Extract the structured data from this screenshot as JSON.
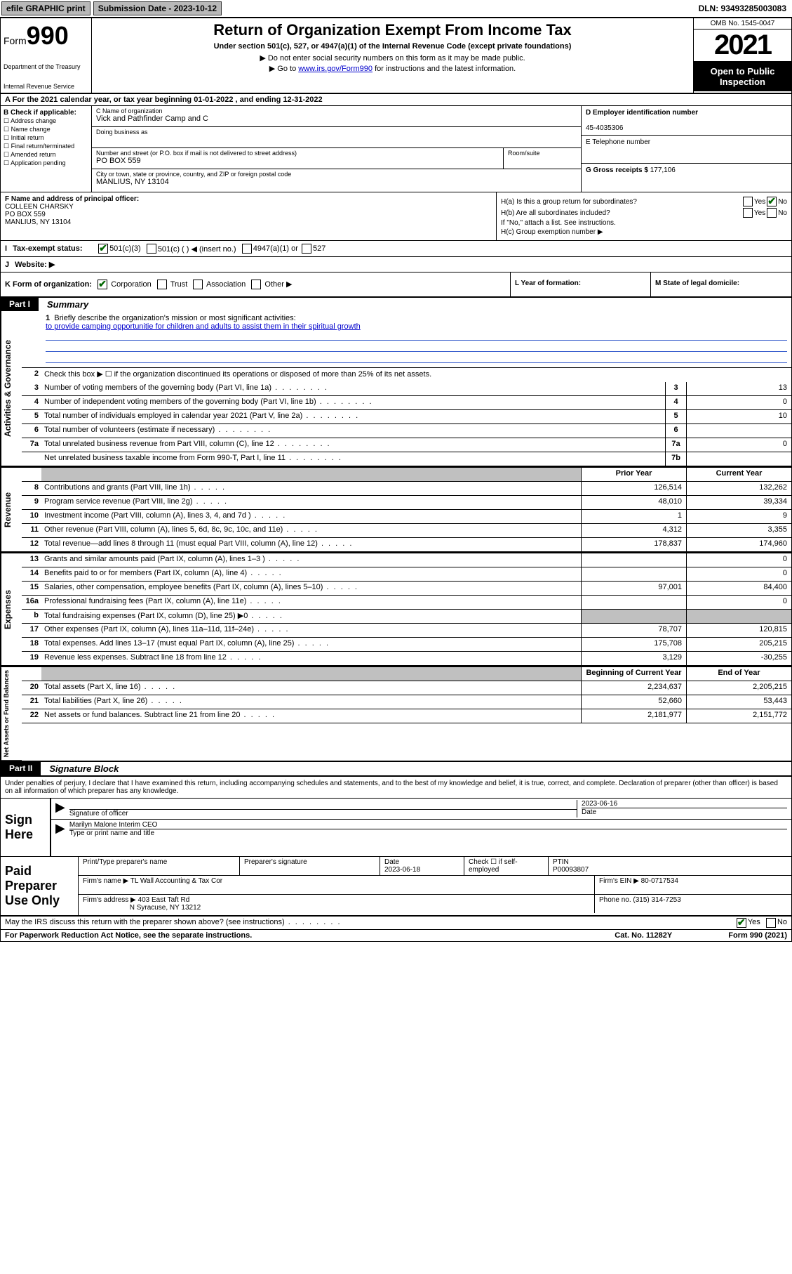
{
  "topbar": {
    "efile": "efile GRAPHIC print",
    "subdate_label": "Submission Date - 2023-10-12",
    "dln": "DLN: 93493285003083"
  },
  "header": {
    "form_label": "Form",
    "form_no": "990",
    "dept": "Department of the Treasury",
    "irs": "Internal Revenue Service",
    "title": "Return of Organization Exempt From Income Tax",
    "sub": "Under section 501(c), 527, or 4947(a)(1) of the Internal Revenue Code (except private foundations)",
    "note1": "▶ Do not enter social security numbers on this form as it may be made public.",
    "note2_pre": "▶ Go to ",
    "note2_link": "www.irs.gov/Form990",
    "note2_post": " for instructions and the latest information.",
    "omb": "OMB No. 1545-0047",
    "year": "2021",
    "open": "Open to Public Inspection"
  },
  "rowA": "A For the 2021 calendar year, or tax year beginning 01-01-2022   , and ending 12-31-2022",
  "colB": {
    "label": "B Check if applicable:",
    "opts": [
      "Address change",
      "Name change",
      "Initial return",
      "Final return/terminated",
      "Amended return",
      "Application pending"
    ]
  },
  "colC": {
    "name_label": "C Name of organization",
    "name": "Vick and Pathfinder Camp and C",
    "dba_label": "Doing business as",
    "dba": "",
    "addr_label": "Number and street (or P.O. box if mail is not delivered to street address)",
    "room_label": "Room/suite",
    "addr": "PO BOX 559",
    "city_label": "City or town, state or province, country, and ZIP or foreign postal code",
    "city": "MANLIUS, NY  13104"
  },
  "colD": {
    "label": "D Employer identification number",
    "value": "45-4035306"
  },
  "colE": {
    "label": "E Telephone number",
    "value": ""
  },
  "colG": {
    "label": "G Gross receipts $",
    "value": "177,106"
  },
  "rowF": {
    "label": "F  Name and address of principal officer:",
    "name": "COLLEEN CHARSKY",
    "addr1": "PO BOX 559",
    "addr2": "MANLIUS, NY  13104"
  },
  "rowH": {
    "ha": "H(a)  Is this a group return for subordinates?",
    "hb": "H(b)  Are all subordinates included?",
    "hbnote": "If \"No,\" attach a list. See instructions.",
    "hc": "H(c)  Group exemption number ▶",
    "yes": "Yes",
    "no": "No"
  },
  "rowI": {
    "label": "Tax-exempt status:",
    "o1": "501(c)(3)",
    "o2": "501(c) (  ) ◀ (insert no.)",
    "o3": "4947(a)(1) or",
    "o4": "527"
  },
  "rowJ": {
    "label": "Website: ▶",
    "value": ""
  },
  "rowK": "K Form of organization:",
  "rowK_opts": [
    "Corporation",
    "Trust",
    "Association",
    "Other ▶"
  ],
  "rowL": "L Year of formation:",
  "rowM": "M State of legal domicile:",
  "partI": {
    "num": "Part I",
    "title": "Summary"
  },
  "summary": {
    "l1": "Briefly describe the organization's mission or most significant activities:",
    "l1v": "to provide camping opportunitie for children and adults to assist them in their spiritual growth",
    "l2": "Check this box ▶ ☐  if the organization discontinued its operations or disposed of more than 25% of its net assets.",
    "rows_gov": [
      {
        "n": "3",
        "d": "Number of voting members of the governing body (Part VI, line 1a)",
        "b": "3",
        "v": "13"
      },
      {
        "n": "4",
        "d": "Number of independent voting members of the governing body (Part VI, line 1b)",
        "b": "4",
        "v": "0"
      },
      {
        "n": "5",
        "d": "Total number of individuals employed in calendar year 2021 (Part V, line 2a)",
        "b": "5",
        "v": "10"
      },
      {
        "n": "6",
        "d": "Total number of volunteers (estimate if necessary)",
        "b": "6",
        "v": ""
      },
      {
        "n": "7a",
        "d": "Total unrelated business revenue from Part VIII, column (C), line 12",
        "b": "7a",
        "v": "0"
      },
      {
        "n": "",
        "d": "Net unrelated business taxable income from Form 990-T, Part I, line 11",
        "b": "7b",
        "v": ""
      }
    ],
    "hdr_prior": "Prior Year",
    "hdr_curr": "Current Year",
    "rows_rev": [
      {
        "n": "8",
        "d": "Contributions and grants (Part VIII, line 1h)",
        "p": "126,514",
        "c": "132,262"
      },
      {
        "n": "9",
        "d": "Program service revenue (Part VIII, line 2g)",
        "p": "48,010",
        "c": "39,334"
      },
      {
        "n": "10",
        "d": "Investment income (Part VIII, column (A), lines 3, 4, and 7d )",
        "p": "1",
        "c": "9"
      },
      {
        "n": "11",
        "d": "Other revenue (Part VIII, column (A), lines 5, 6d, 8c, 9c, 10c, and 11e)",
        "p": "4,312",
        "c": "3,355"
      },
      {
        "n": "12",
        "d": "Total revenue—add lines 8 through 11 (must equal Part VIII, column (A), line 12)",
        "p": "178,837",
        "c": "174,960"
      }
    ],
    "rows_exp": [
      {
        "n": "13",
        "d": "Grants and similar amounts paid (Part IX, column (A), lines 1–3 )",
        "p": "",
        "c": "0"
      },
      {
        "n": "14",
        "d": "Benefits paid to or for members (Part IX, column (A), line 4)",
        "p": "",
        "c": "0"
      },
      {
        "n": "15",
        "d": "Salaries, other compensation, employee benefits (Part IX, column (A), lines 5–10)",
        "p": "97,001",
        "c": "84,400"
      },
      {
        "n": "16a",
        "d": "Professional fundraising fees (Part IX, column (A), line 11e)",
        "p": "",
        "c": "0"
      },
      {
        "n": "b",
        "d": "Total fundraising expenses (Part IX, column (D), line 25) ▶0",
        "p": "shade",
        "c": "shade"
      },
      {
        "n": "17",
        "d": "Other expenses (Part IX, column (A), lines 11a–11d, 11f–24e)",
        "p": "78,707",
        "c": "120,815"
      },
      {
        "n": "18",
        "d": "Total expenses. Add lines 13–17 (must equal Part IX, column (A), line 25)",
        "p": "175,708",
        "c": "205,215"
      },
      {
        "n": "19",
        "d": "Revenue less expenses. Subtract line 18 from line 12",
        "p": "3,129",
        "c": "-30,255"
      }
    ],
    "hdr_beg": "Beginning of Current Year",
    "hdr_end": "End of Year",
    "rows_net": [
      {
        "n": "20",
        "d": "Total assets (Part X, line 16)",
        "p": "2,234,637",
        "c": "2,205,215"
      },
      {
        "n": "21",
        "d": "Total liabilities (Part X, line 26)",
        "p": "52,660",
        "c": "53,443"
      },
      {
        "n": "22",
        "d": "Net assets or fund balances. Subtract line 21 from line 20",
        "p": "2,181,977",
        "c": "2,151,772"
      }
    ],
    "vlab_gov": "Activities & Governance",
    "vlab_rev": "Revenue",
    "vlab_exp": "Expenses",
    "vlab_net": "Net Assets or Fund Balances"
  },
  "partII": {
    "num": "Part II",
    "title": "Signature Block"
  },
  "sigdecl": "Under penalties of perjury, I declare that I have examined this return, including accompanying schedules and statements, and to the best of my knowledge and belief, it is true, correct, and complete. Declaration of preparer (other than officer) is based on all information of which preparer has any knowledge.",
  "sign": {
    "label": "Sign Here",
    "sig_label": "Signature of officer",
    "date_label": "Date",
    "date": "2023-06-16",
    "name": "Marilyn Malone  Interim CEO",
    "name_label": "Type or print name and title"
  },
  "prep": {
    "label": "Paid Preparer Use Only",
    "h1": "Print/Type preparer's name",
    "h2": "Preparer's signature",
    "h3": "Date",
    "h3v": "2023-06-18",
    "h4": "Check ☐ if self-employed",
    "h5": "PTIN",
    "h5v": "P00093807",
    "firm_label": "Firm's name    ▶",
    "firm": "TL Wall Accounting & Tax Cor",
    "ein_label": "Firm's EIN ▶",
    "ein": "80-0717534",
    "addr_label": "Firm's address ▶",
    "addr1": "403 East Taft Rd",
    "addr2": "N Syracuse, NY  13212",
    "phone_label": "Phone no.",
    "phone": "(315) 314-7253"
  },
  "footer": {
    "discuss": "May the IRS discuss this return with the preparer shown above? (see instructions)",
    "yes": "Yes",
    "no": "No",
    "pra": "For Paperwork Reduction Act Notice, see the separate instructions.",
    "cat": "Cat. No. 11282Y",
    "form": "Form 990 (2021)"
  }
}
